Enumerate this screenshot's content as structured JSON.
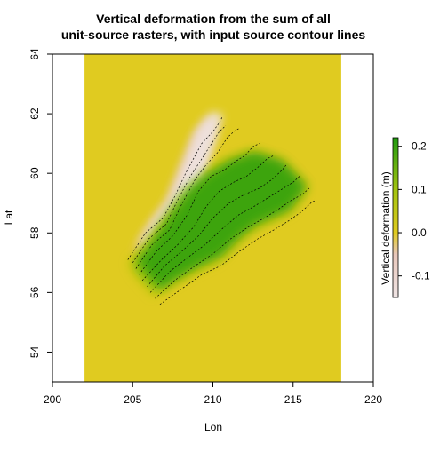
{
  "chart_data": {
    "type": "heatmap",
    "title_line1": "Vertical deformation from the sum of all",
    "title_line2": "unit-source rasters, with input source contour lines",
    "xlabel": "Lon",
    "ylabel": "Lat",
    "xlim": [
      200,
      220
    ],
    "ylim": [
      53,
      64
    ],
    "x_ticks": [
      200,
      205,
      210,
      215,
      220
    ],
    "y_ticks": [
      54,
      56,
      58,
      60,
      62,
      64
    ],
    "raster_extent": {
      "lon": [
        202,
        218
      ],
      "lat": [
        53,
        64
      ]
    },
    "legend": {
      "title": "Vertical deformation (m)",
      "ticks": [
        -0.1,
        0.0,
        0.1,
        0.2
      ],
      "range": [
        -0.15,
        0.22
      ],
      "colors": {
        "negative": "#efe4e4",
        "low": "#e8c7bb",
        "zero": "#e0cb20",
        "mid": "#a2c410",
        "high": "#1f9a10"
      }
    },
    "regions": [
      {
        "name": "subsidence",
        "min_value": -0.12,
        "lon": [
          208.6,
          209.9,
          210.3,
          209.6,
          208.7,
          207.9,
          207.0,
          206.0,
          205.3,
          205.0,
          205.6,
          206.8,
          208.0,
          208.6
        ],
        "lat": [
          58.9,
          61.0,
          61.8,
          61.9,
          61.3,
          60.2,
          59.0,
          58.3,
          57.7,
          57.2,
          57.6,
          58.4,
          59.0,
          58.9
        ]
      },
      {
        "name": "uplift",
        "max_value": 0.22,
        "lon": [
          205.3,
          207.1,
          208.2,
          209.3,
          210.8,
          212.4,
          214.2,
          215.8,
          214.7,
          212.6,
          211.6,
          210.3,
          208.7,
          207.1,
          206.4,
          205.2,
          204.8
        ],
        "lat": [
          57.2,
          58.6,
          59.4,
          59.9,
          60.4,
          60.7,
          60.4,
          59.5,
          58.7,
          58.2,
          57.8,
          57.1,
          56.7,
          56.2,
          55.9,
          56.6,
          57.0
        ]
      }
    ],
    "contours": [
      {
        "lon": [
          204.7,
          205.8,
          206.9,
          207.6,
          208.3,
          208.8,
          209.3,
          210.0,
          210.4,
          210.6
        ],
        "lat": [
          57.1,
          58.0,
          58.5,
          59.2,
          60.0,
          60.5,
          61.0,
          61.4,
          61.7,
          61.9
        ]
      },
      {
        "lon": [
          205.0,
          206.0,
          207.1,
          207.8,
          208.6,
          209.2,
          209.8,
          210.4,
          210.8
        ],
        "lat": [
          57.0,
          57.8,
          58.3,
          59.1,
          59.9,
          60.4,
          60.9,
          61.4,
          61.6
        ]
      },
      {
        "lon": [
          205.2,
          206.2,
          207.3,
          208.0,
          208.9,
          209.6,
          210.3,
          210.9,
          211.3,
          211.6
        ],
        "lat": [
          56.8,
          57.6,
          58.1,
          58.9,
          59.8,
          60.3,
          60.7,
          61.2,
          61.4,
          61.5
        ]
      },
      {
        "lon": [
          205.4,
          206.5,
          207.5,
          208.4,
          209.1,
          209.9,
          210.7,
          211.4,
          212.0,
          212.5,
          212.9
        ],
        "lat": [
          56.6,
          57.4,
          57.9,
          58.6,
          59.4,
          59.9,
          60.1,
          60.4,
          60.6,
          60.9,
          61.0
        ]
      },
      {
        "lon": [
          205.6,
          206.8,
          207.8,
          208.8,
          209.6,
          210.4,
          211.3,
          212.1,
          212.8,
          213.4,
          213.8
        ],
        "lat": [
          56.4,
          57.1,
          57.6,
          58.2,
          58.9,
          59.4,
          59.7,
          59.9,
          60.2,
          60.5,
          60.6
        ]
      },
      {
        "lon": [
          205.9,
          207.0,
          208.1,
          209.1,
          210.0,
          211.0,
          212.0,
          212.9,
          213.7,
          214.3,
          214.6
        ],
        "lat": [
          56.2,
          56.9,
          57.4,
          57.9,
          58.5,
          59.0,
          59.3,
          59.5,
          59.8,
          60.1,
          60.3
        ]
      },
      {
        "lon": [
          206.1,
          207.3,
          208.5,
          209.5,
          210.5,
          211.6,
          212.6,
          213.5,
          214.4,
          215.0,
          215.4
        ],
        "lat": [
          56.0,
          56.7,
          57.2,
          57.6,
          58.1,
          58.6,
          58.9,
          59.2,
          59.5,
          59.7,
          59.9
        ]
      },
      {
        "lon": [
          206.4,
          207.6,
          208.9,
          210.0,
          211.1,
          212.2,
          213.2,
          214.1,
          214.9,
          215.6,
          216.0
        ],
        "lat": [
          55.8,
          56.4,
          56.9,
          57.3,
          57.8,
          58.2,
          58.5,
          58.8,
          59.1,
          59.3,
          59.5
        ]
      },
      {
        "lon": [
          206.7,
          208.0,
          209.3,
          210.5,
          211.7,
          212.8,
          213.8,
          214.7,
          215.5,
          216.1,
          216.4
        ],
        "lat": [
          55.6,
          56.1,
          56.6,
          56.9,
          57.4,
          57.8,
          58.1,
          58.4,
          58.7,
          59.0,
          59.1
        ]
      }
    ]
  }
}
